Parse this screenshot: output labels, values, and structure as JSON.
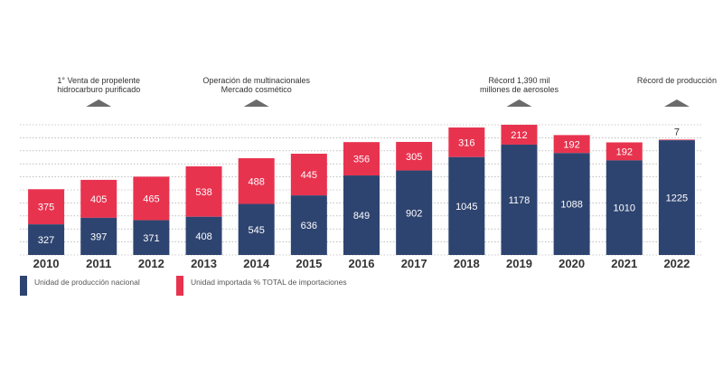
{
  "colors": {
    "national": "#2e4470",
    "imported": "#e8334f",
    "marker": "#6b6b6b",
    "grid": "#9a9a9a"
  },
  "legend": {
    "national": "Unidad de producción nacional",
    "imported": "Unidad importada % TOTAL de importaciones"
  },
  "chart_data": {
    "type": "bar",
    "stacked": true,
    "categories": [
      "2010",
      "2011",
      "2012",
      "2013",
      "2014",
      "2015",
      "2016",
      "2017",
      "2018",
      "2019",
      "2020",
      "2021",
      "2022"
    ],
    "series": [
      {
        "name": "Unidad de producción nacional",
        "values": [
          327,
          397,
          371,
          408,
          545,
          636,
          849,
          902,
          1045,
          1178,
          1088,
          1010,
          1225
        ]
      },
      {
        "name": "Unidad importada % TOTAL de importaciones",
        "values": [
          375,
          405,
          465,
          538,
          488,
          445,
          356,
          305,
          316,
          212,
          192,
          192,
          7
        ]
      }
    ],
    "annotations": [
      {
        "category": "2011",
        "lines": [
          "1° Venta de propelente",
          "hidrocarburo purificado"
        ]
      },
      {
        "category": "2014",
        "lines": [
          "Operación de multinacionales",
          "Mercado cosmético"
        ]
      },
      {
        "category": "2019",
        "lines": [
          "Récord 1,390 mil",
          "millones de aerosoles"
        ]
      },
      {
        "category": "2022",
        "lines": [
          "Récord de producción"
        ]
      }
    ],
    "grid": true,
    "legend_position": "bottom-left"
  }
}
